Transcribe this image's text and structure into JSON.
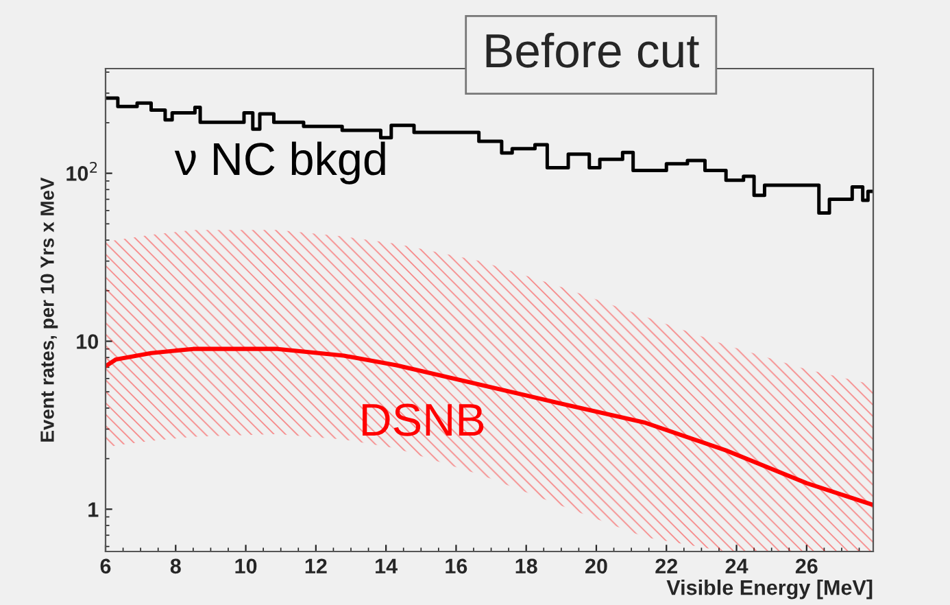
{
  "chart_data": {
    "type": "line",
    "title": "Before cut",
    "xlabel": "Visible Energy [MeV]",
    "ylabel": "Event rates, per 10 Yrs x MeV",
    "log": "y",
    "xlim": [
      6,
      27.9
    ],
    "xticks": [
      6,
      8,
      10,
      12,
      14,
      16,
      18,
      20,
      22,
      24,
      26
    ],
    "ylim": [
      0.56,
      420
    ],
    "yticks": [
      1,
      10,
      {
        "value": 100,
        "label": "10$^{2}$"
      }
    ],
    "grid": false,
    "legend": false,
    "series": [
      {
        "name": "ν NC bkgd",
        "type": "step",
        "color": "#000000",
        "x": [
          6.0,
          6.35,
          6.9,
          7.3,
          7.7,
          7.9,
          8.55,
          8.7,
          9.95,
          10.2,
          10.4,
          10.8,
          11.65,
          12.75,
          13.85,
          14.15,
          14.8,
          16.65,
          17.3,
          17.6,
          18.25,
          18.6,
          19.2,
          19.8,
          20.1,
          20.75,
          21.05,
          22.0,
          22.6,
          23.1,
          23.7,
          24.2,
          24.5,
          24.8,
          26.35,
          26.65,
          27.3,
          27.6,
          27.75,
          27.9
        ],
        "values": [
          280,
          250,
          262,
          238,
          208,
          229,
          247,
          201,
          229,
          183,
          226,
          201,
          190,
          180,
          163,
          193,
          175,
          155,
          132,
          140,
          148,
          108,
          130,
          108,
          121,
          133,
          104,
          114,
          119,
          104,
          91,
          96,
          74,
          85,
          58,
          70,
          83,
          69,
          78,
          78
        ]
      },
      {
        "name": "DSNB",
        "color": "#ff0000",
        "x": [
          6,
          6.3,
          7.3,
          8.5,
          10.9,
          12.8,
          14.3,
          16.7,
          19.0,
          21.4,
          23.7,
          26.0,
          27.9
        ],
        "values": [
          7.1,
          7.8,
          8.5,
          9.0,
          9.0,
          8.2,
          7.2,
          5.5,
          4.25,
          3.27,
          2.24,
          1.43,
          1.06
        ],
        "upper": [
          39,
          40,
          43,
          46,
          46,
          42,
          38,
          30,
          21,
          14,
          9.5,
          6.8,
          5.5
        ],
        "lower": [
          2.3,
          2.4,
          2.55,
          2.7,
          2.8,
          2.6,
          2.3,
          1.6,
          1.05,
          0.68,
          0.56,
          0.56,
          0.56
        ]
      }
    ]
  }
}
